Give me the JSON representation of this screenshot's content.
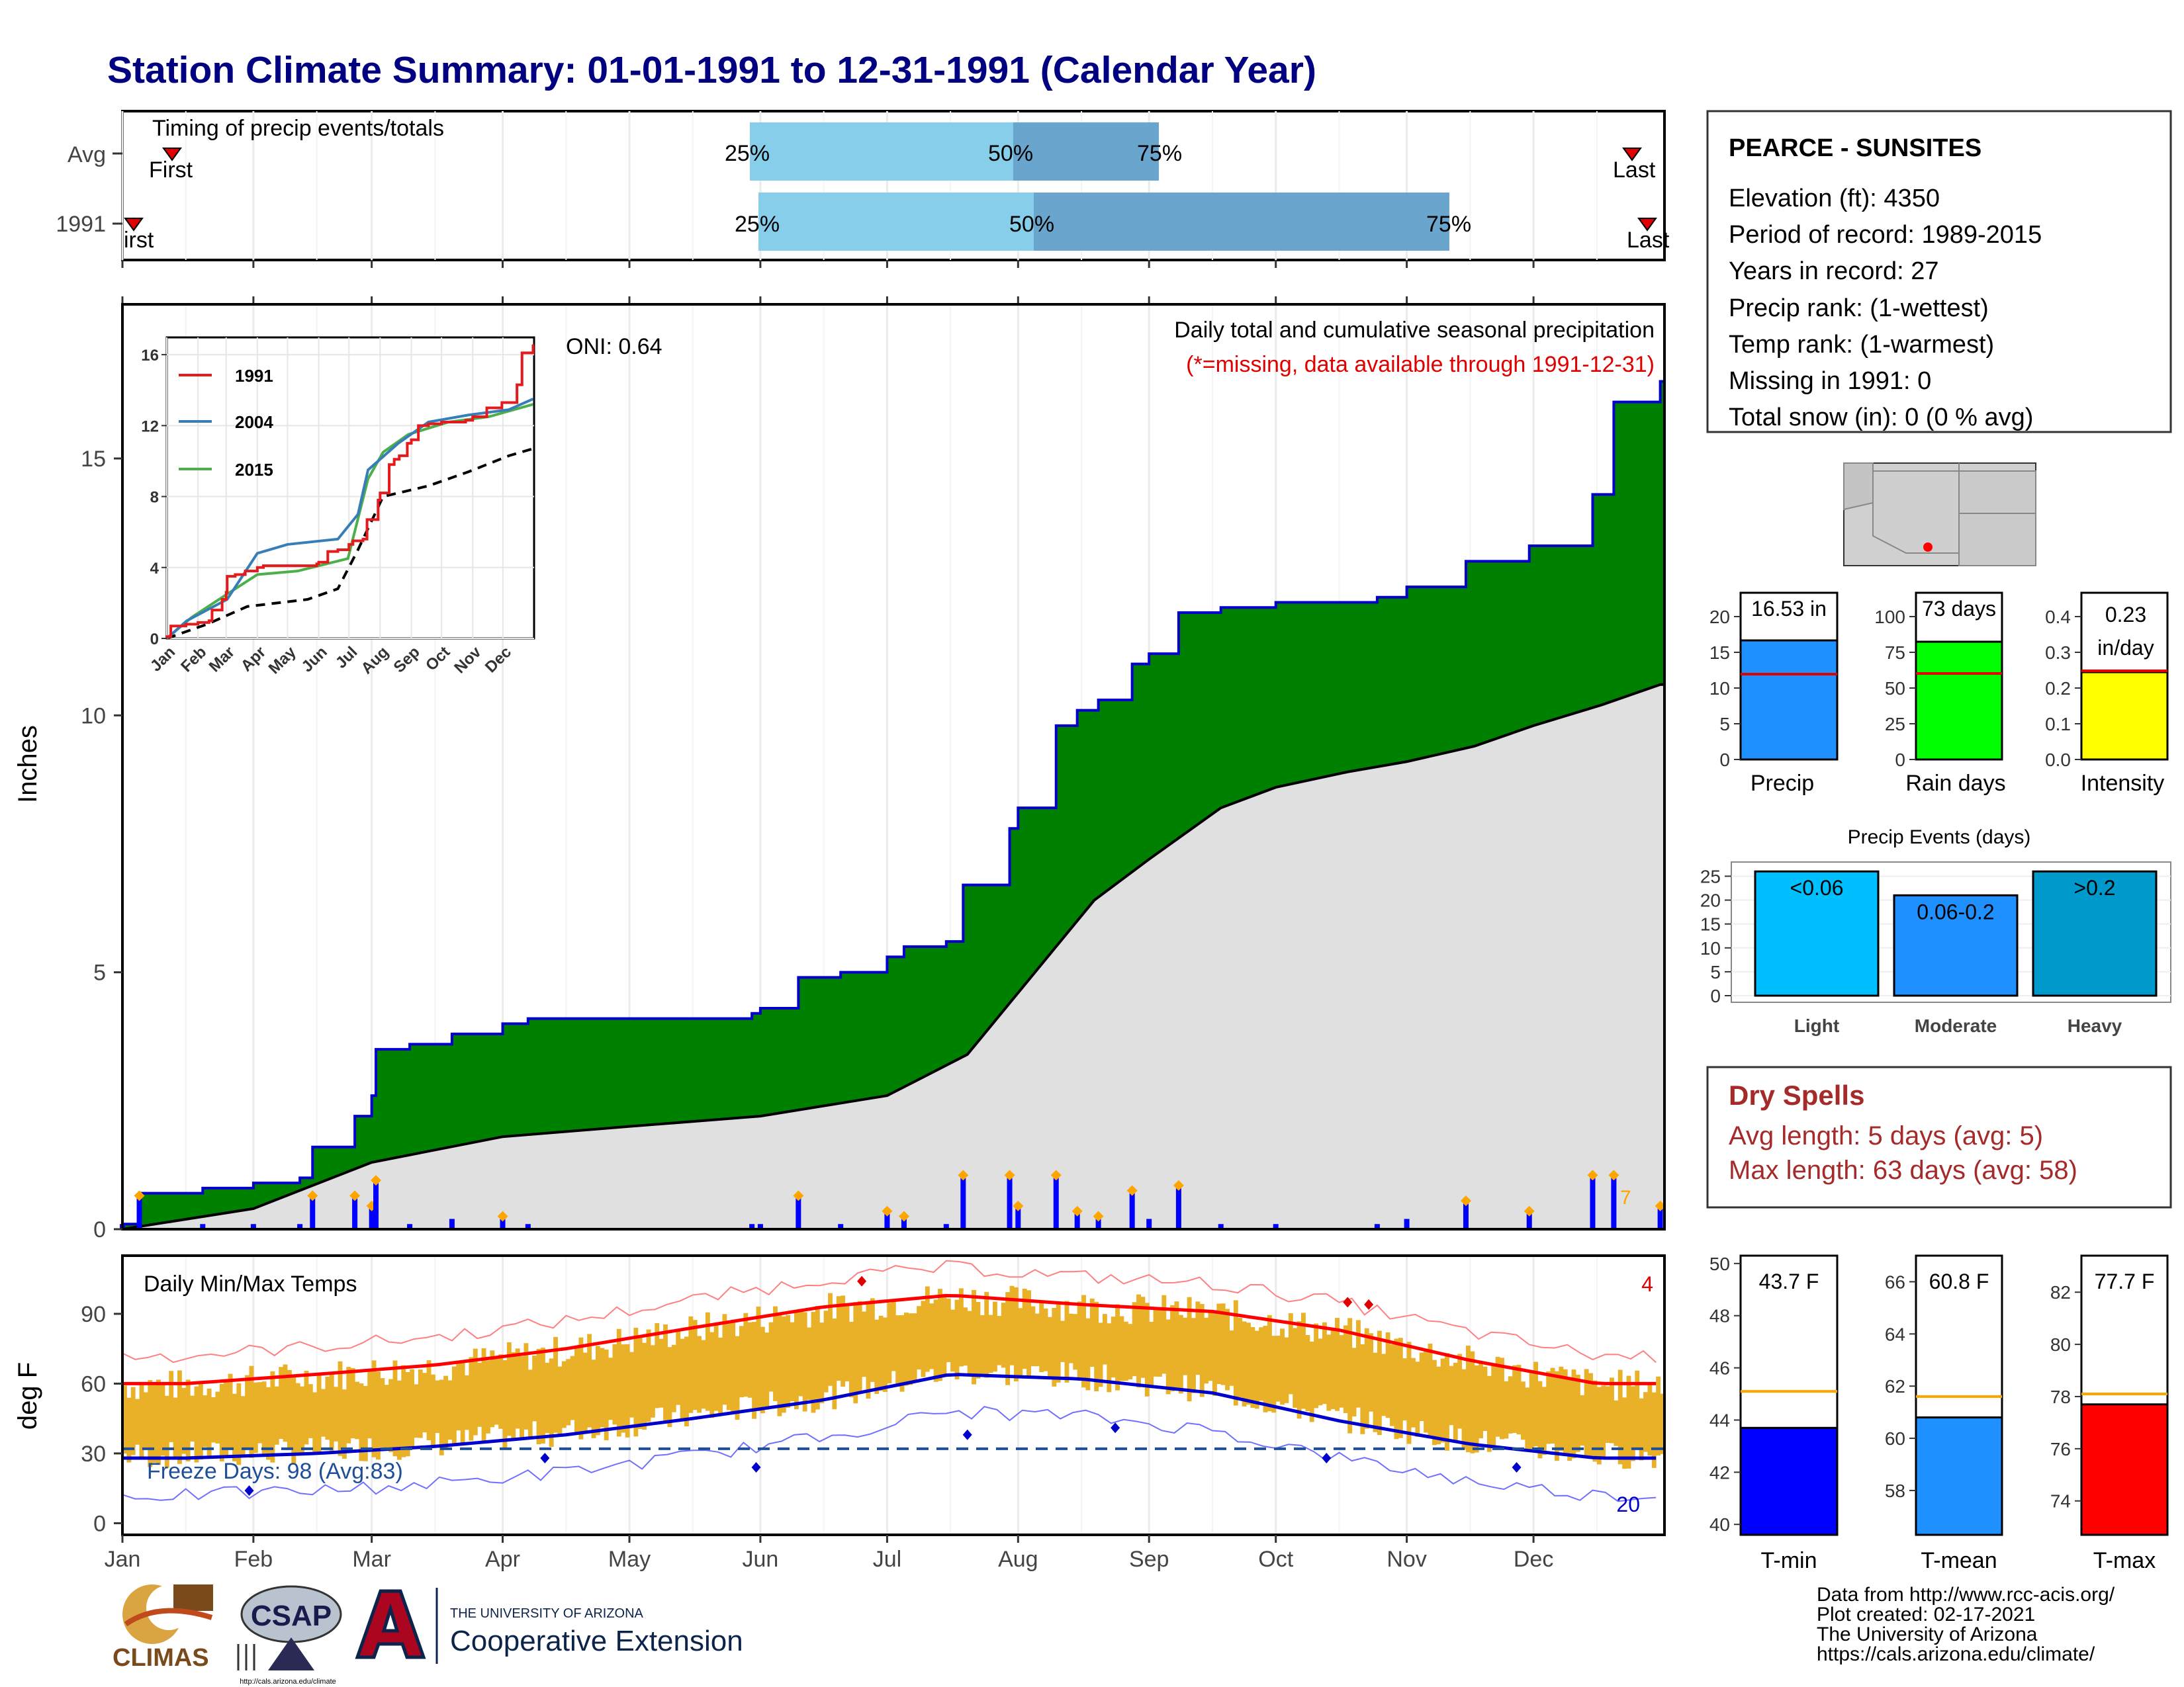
{
  "title": "Station Climate Summary: 01-01-1991 to 12-31-1991 (Calendar Year)",
  "colors": {
    "title": "#000080",
    "precip_fill": "#008000",
    "avg_fill": "#e0e0e0",
    "q_light": "#87ceeb",
    "q_dark": "#6aa5cd",
    "marker": "#e00000",
    "diamond": "#ffa500",
    "bars_blue": "#0000ff",
    "range_fill": "#e8b128",
    "tmax_line": "#ff0000",
    "tmin_line": "#0000cd",
    "tmax_rec": "#ff8080",
    "tmin_rec": "#7070ff",
    "dry": "#a52a2a",
    "missing": "#ff0000"
  },
  "timing": {
    "title": "Timing of precip events/totals",
    "row_labels": [
      "Avg",
      "1991"
    ],
    "first_label": "First",
    "first_label_1991": "irst",
    "last_label": "Last",
    "last_label_1991": "Last",
    "q25": "25%",
    "q50": "50%",
    "q75": "75%"
  },
  "station": {
    "name": "PEARCE - SUNSITES",
    "lines": [
      "Elevation (ft): 4350",
      "Period of record: 1989-2015",
      "Years in record: 27",
      "Precip rank:  (1-wettest)",
      "Temp rank:  (1-warmest)",
      "Missing in 1991: 0",
      "Total snow (in): 0 (0 % avg)"
    ]
  },
  "precip": {
    "header": "Daily total and cumulative seasonal precipitation",
    "missing_note": "(*=missing, data available through 1991-12-31)",
    "oni": "ONI: 0.64",
    "ylabel": "Inches",
    "yticks": [
      "0",
      "5",
      "10",
      "15"
    ],
    "corner_count": "7"
  },
  "temps": {
    "title": "Daily Min/Max Temps",
    "ylabel": "deg F",
    "yticks": [
      "0",
      "30",
      "60",
      "90"
    ],
    "freeze": "Freeze Days: 98 (Avg:83)",
    "hot_count": "4",
    "cold_count": "20"
  },
  "months": [
    "Jan",
    "Feb",
    "Mar",
    "Apr",
    "May",
    "Jun",
    "Jul",
    "Aug",
    "Sep",
    "Oct",
    "Nov",
    "Dec"
  ],
  "inset": {
    "legend": [
      "1991",
      "2004",
      "2015"
    ],
    "legend_colors": [
      "#e41a1c",
      "#377eb8",
      "#4daf4a"
    ],
    "yticks": [
      "0",
      "4",
      "8",
      "12",
      "16"
    ]
  },
  "summary_bars": {
    "precip": {
      "label": "Precip",
      "value_text": "16.53 in",
      "yticks": [
        "0",
        "5",
        "10",
        "15",
        "20"
      ]
    },
    "raindays": {
      "label": "Rain days",
      "value_text": "73 days",
      "yticks": [
        "0",
        "25",
        "50",
        "75",
        "100"
      ]
    },
    "intensity": {
      "label": "Intensity",
      "value_text_1": "0.23",
      "value_text_2": "in/day",
      "yticks": [
        "0.0",
        "0.1",
        "0.2",
        "0.3",
        "0.4"
      ]
    }
  },
  "events": {
    "title": "Precip Events (days)",
    "yticks": [
      "0",
      "5",
      "10",
      "15",
      "20",
      "25"
    ],
    "bars": [
      {
        "label": "Light",
        "range": "<0.06",
        "value": 26,
        "color": "#00bfff"
      },
      {
        "label": "Moderate",
        "range": "0.06-0.2",
        "value": 21,
        "color": "#1e90ff"
      },
      {
        "label": "Heavy",
        "range": ">0.2",
        "value": 26,
        "color": "#0099cc"
      }
    ]
  },
  "dry": {
    "title": "Dry Spells",
    "avg": "Avg length: 5 days (avg: 5)",
    "max": "Max length: 63 days (avg: 58)"
  },
  "temp_bars": [
    {
      "label": "T-min",
      "value_text": "43.7 F",
      "color": "#0000ff",
      "yticks": [
        "40",
        "42",
        "44",
        "46",
        "48",
        "50"
      ]
    },
    {
      "label": "T-mean",
      "value_text": "60.8 F",
      "color": "#1e90ff",
      "yticks": [
        "58",
        "60",
        "62",
        "64",
        "66"
      ]
    },
    {
      "label": "T-max",
      "value_text": "77.7 F",
      "color": "#ff0000",
      "yticks": [
        "74",
        "76",
        "78",
        "80",
        "82"
      ]
    }
  ],
  "credits": [
    "Data from http://www.rcc-acis.org/",
    "Plot created: 02-17-2021",
    "The University of Arizona",
    "https://cals.arizona.edu/climate/"
  ],
  "logos": {
    "climas": "CLIMAS",
    "csap": "CSAP",
    "csap_url": "http://cals.arizona.edu/climate",
    "ua_line1": "THE UNIVERSITY OF ARIZONA",
    "ua_line2": "Cooperative Extension"
  },
  "chart_data": [
    {
      "type": "area",
      "title": "Daily total and cumulative seasonal precipitation",
      "ylabel": "Inches",
      "ylim": [
        0,
        18
      ],
      "x": [
        "Jan 1",
        "Jan 5",
        "Jan 20",
        "Feb 1",
        "Feb 12",
        "Feb 15",
        "Feb 25",
        "Mar 1",
        "Mar 2",
        "Mar 10",
        "Mar 20",
        "Apr 1",
        "Apr 7",
        "May 1",
        "May 30",
        "Jun 1",
        "Jun 10",
        "Jun 20",
        "Jul 1",
        "Jul 5",
        "Jul 15",
        "Jul 19",
        "Jul 30",
        "Aug 1",
        "Aug 10",
        "Aug 15",
        "Aug 20",
        "Aug 28",
        "Sep 1",
        "Sep 8",
        "Sep 18",
        "Oct 1",
        "Oct 20",
        "Oct 25",
        "Nov 1",
        "Nov 15",
        "Nov 30",
        "Dec 10",
        "Dec 15",
        "Dec 20",
        "Dec 31"
      ],
      "series": [
        {
          "name": "1991",
          "values": [
            0.1,
            0.7,
            0.8,
            0.9,
            1.0,
            1.6,
            2.2,
            2.6,
            3.5,
            3.6,
            3.8,
            4.0,
            4.1,
            4.1,
            4.2,
            4.3,
            4.9,
            5.0,
            5.3,
            5.5,
            5.6,
            6.7,
            7.8,
            8.2,
            9.8,
            10.1,
            10.3,
            11.0,
            11.2,
            12.0,
            12.1,
            12.2,
            12.2,
            12.3,
            12.5,
            13.0,
            13.3,
            13.3,
            14.3,
            16.1,
            16.5
          ]
        }
      ]
    },
    {
      "type": "line",
      "title": "Daily Min/Max Temps",
      "ylabel": "deg F",
      "ylim": [
        0,
        110
      ],
      "categories": [
        "Jan",
        "Feb",
        "Mar",
        "Apr",
        "May",
        "Jun",
        "Jul",
        "Aug",
        "Sep",
        "Oct",
        "Nov",
        "Dec"
      ],
      "series": [
        {
          "name": "Avg max",
          "values": [
            60,
            64,
            68,
            75,
            84,
            93,
            98,
            94,
            91,
            83,
            70,
            60
          ]
        },
        {
          "name": "Avg min",
          "values": [
            28,
            30,
            33,
            38,
            45,
            53,
            64,
            62,
            56,
            44,
            34,
            28
          ]
        }
      ]
    },
    {
      "type": "bar",
      "title": "Precip Events (days)",
      "categories": [
        "Light",
        "Moderate",
        "Heavy"
      ],
      "values": [
        26,
        21,
        26
      ]
    },
    {
      "type": "bar",
      "categories": [
        "Precip",
        "Rain days",
        "Intensity"
      ],
      "values": [
        16.53,
        73,
        0.23
      ]
    },
    {
      "type": "bar",
      "categories": [
        "T-min",
        "T-mean",
        "T-max"
      ],
      "values": [
        43.7,
        60.8,
        77.7
      ]
    }
  ]
}
